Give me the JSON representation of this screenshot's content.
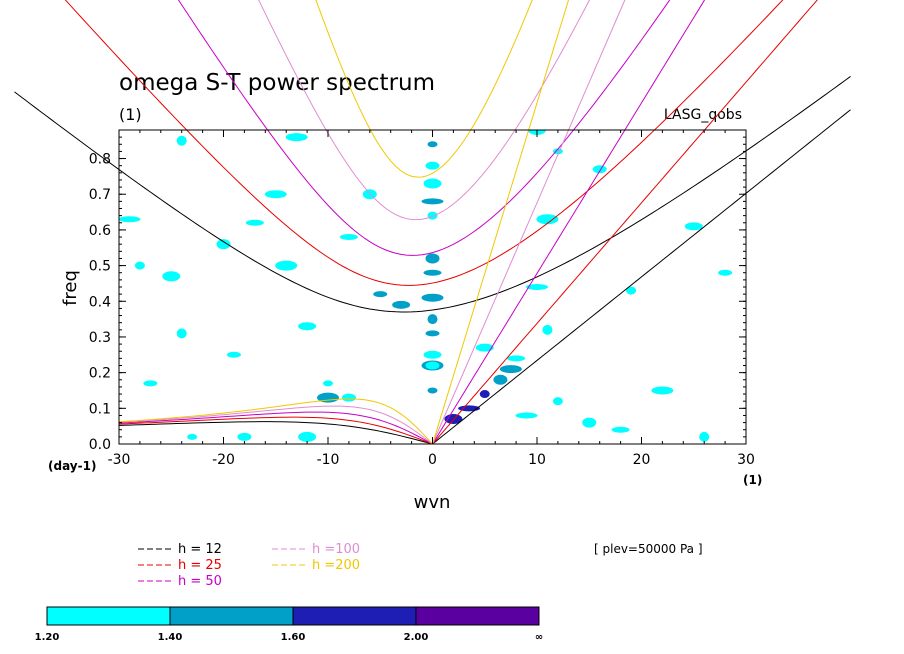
{
  "chart_data": {
    "type": "contour",
    "title": "omega S-T power spectrum",
    "subtitle": "(1)",
    "dataset": "LASG_qobs",
    "level_note": "[ plev=50000 Pa ]",
    "xlabel": "wvn",
    "ylabel": "freq",
    "x_unit": "(1)",
    "y_unit": "(day-1)",
    "xlim": [
      -30,
      30
    ],
    "ylim": [
      0,
      0.88
    ],
    "xticks": [
      "-30",
      "-20",
      "-10",
      "0",
      "10",
      "20",
      "30"
    ],
    "yticks": [
      "0.0",
      "0.1",
      "0.2",
      "0.3",
      "0.4",
      "0.5",
      "0.6",
      "0.7",
      "0.8"
    ],
    "dispersion_curves": [
      {
        "label": "h = 12",
        "h": 12,
        "color": "#000000"
      },
      {
        "label": "h = 25",
        "h": 25,
        "color": "#e60000"
      },
      {
        "label": "h = 50",
        "h": 50,
        "color": "#c800c8"
      },
      {
        "label": "h =100",
        "h": 100,
        "color": "#e08cd2"
      },
      {
        "label": "h =200",
        "h": 200,
        "color": "#f0c800"
      }
    ],
    "colorbar": {
      "labels": [
        "1.20",
        "1.40",
        "1.60",
        "2.00",
        "∞"
      ],
      "colors": [
        "#00ffff",
        "#00a0c8",
        "#1e1eb4",
        "#5a00a0"
      ]
    },
    "shaded_regions": [
      {
        "x": 0,
        "y": 0.84,
        "level": 2
      },
      {
        "x": 0,
        "y": 0.78,
        "level": 1
      },
      {
        "x": 0,
        "y": 0.73,
        "level": 1
      },
      {
        "x": 0,
        "y": 0.68,
        "level": 2
      },
      {
        "x": 0,
        "y": 0.64,
        "level": 1
      },
      {
        "x": 0,
        "y": 0.52,
        "level": 2
      },
      {
        "x": 0,
        "y": 0.48,
        "level": 2
      },
      {
        "x": 0,
        "y": 0.41,
        "level": 2
      },
      {
        "x": 0,
        "y": 0.35,
        "level": 2
      },
      {
        "x": 0,
        "y": 0.31,
        "level": 2
      },
      {
        "x": 0,
        "y": 0.25,
        "level": 1
      },
      {
        "x": 0,
        "y": 0.22,
        "level": 2
      },
      {
        "x": 0,
        "y": 0.15,
        "level": 2
      },
      {
        "x": 0,
        "y": 0.22,
        "level": 1
      },
      {
        "x": 2,
        "y": 0.07,
        "level": 3
      },
      {
        "x": 3.5,
        "y": 0.1,
        "level": 3
      },
      {
        "x": 5,
        "y": 0.14,
        "level": 3
      },
      {
        "x": 6.5,
        "y": 0.18,
        "level": 2
      },
      {
        "x": 8,
        "y": 0.24,
        "level": 1
      },
      {
        "x": 7.5,
        "y": 0.21,
        "level": 2
      },
      {
        "x": 11,
        "y": 0.32,
        "level": 1
      },
      {
        "x": -5,
        "y": 0.42,
        "level": 2
      },
      {
        "x": -3,
        "y": 0.39,
        "level": 2
      },
      {
        "x": -10,
        "y": 0.13,
        "level": 2
      },
      {
        "x": -10,
        "y": 0.17,
        "level": 1
      },
      {
        "x": -8,
        "y": 0.13,
        "level": 1
      },
      {
        "x": -25,
        "y": 0.47,
        "level": 1
      },
      {
        "x": -29,
        "y": 0.63,
        "level": 1
      },
      {
        "x": -28,
        "y": 0.5,
        "level": 1
      },
      {
        "x": -20,
        "y": 0.56,
        "level": 1
      },
      {
        "x": -17,
        "y": 0.62,
        "level": 1
      },
      {
        "x": -15,
        "y": 0.7,
        "level": 1
      },
      {
        "x": -24,
        "y": 0.31,
        "level": 1
      },
      {
        "x": -19,
        "y": 0.25,
        "level": 1
      },
      {
        "x": -12,
        "y": 0.33,
        "level": 1
      },
      {
        "x": -14,
        "y": 0.5,
        "level": 1
      },
      {
        "x": -23,
        "y": 0.02,
        "level": 1
      },
      {
        "x": -18,
        "y": 0.02,
        "level": 1
      },
      {
        "x": -12,
        "y": 0.02,
        "level": 1
      },
      {
        "x": 9,
        "y": 0.08,
        "level": 1
      },
      {
        "x": 12,
        "y": 0.12,
        "level": 1
      },
      {
        "x": 15,
        "y": 0.06,
        "level": 1
      },
      {
        "x": 18,
        "y": 0.04,
        "level": 1
      },
      {
        "x": 22,
        "y": 0.15,
        "level": 1
      },
      {
        "x": 26,
        "y": 0.02,
        "level": 1
      },
      {
        "x": 28,
        "y": 0.48,
        "level": 1
      },
      {
        "x": 25,
        "y": 0.61,
        "level": 1
      },
      {
        "x": 11,
        "y": 0.63,
        "level": 1
      },
      {
        "x": 12,
        "y": 0.82,
        "level": 1
      },
      {
        "x": 16,
        "y": 0.77,
        "level": 1
      },
      {
        "x": 10,
        "y": 0.88,
        "level": 1
      },
      {
        "x": 10,
        "y": 0.44,
        "level": 1
      },
      {
        "x": 19,
        "y": 0.43,
        "level": 1
      },
      {
        "x": -6,
        "y": 0.7,
        "level": 1
      },
      {
        "x": -8,
        "y": 0.58,
        "level": 1
      },
      {
        "x": -13,
        "y": 0.86,
        "level": 1
      },
      {
        "x": -24,
        "y": 0.85,
        "level": 1
      },
      {
        "x": -27,
        "y": 0.17,
        "level": 1
      },
      {
        "x": 5,
        "y": 0.27,
        "level": 1
      }
    ]
  }
}
